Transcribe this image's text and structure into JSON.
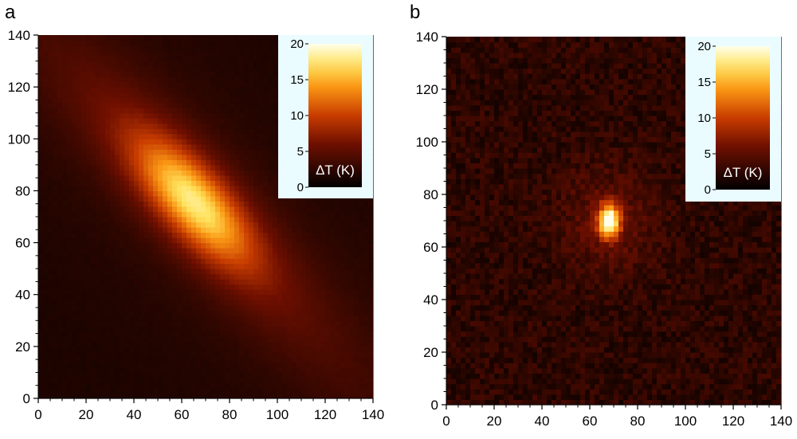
{
  "panels": [
    {
      "letter": "a",
      "colorbar": {
        "label": "ΔT (K)",
        "min": 0,
        "max": 20,
        "ticks": [
          0,
          5,
          10,
          15,
          20
        ]
      },
      "chart_data": {
        "type": "heatmap",
        "title": "",
        "xlabel": "",
        "ylabel": "",
        "xlim": [
          0,
          140
        ],
        "ylim": [
          0,
          140
        ],
        "xticks": [
          0,
          20,
          40,
          60,
          80,
          100,
          120,
          140
        ],
        "yticks": [
          0,
          20,
          40,
          60,
          80,
          100,
          120,
          140
        ],
        "z_unit": "K",
        "colormap": "black-red-orange-yellow-white",
        "description_values": {
          "peak_center": [
            65,
            76
          ],
          "peak_value": 14,
          "shape": "elongated",
          "elongation_axis": "diagonal, upper-left to lower-right",
          "background_value": 2.5
        }
      }
    },
    {
      "letter": "b",
      "colorbar": {
        "label": "ΔT (K)",
        "min": 0,
        "max": 20,
        "ticks": [
          0,
          5,
          10,
          15,
          20
        ]
      },
      "chart_data": {
        "type": "heatmap",
        "title": "",
        "xlabel": "",
        "ylabel": "",
        "xlim": [
          0,
          140
        ],
        "ylim": [
          0,
          140
        ],
        "xticks": [
          0,
          20,
          40,
          60,
          80,
          100,
          120,
          140
        ],
        "yticks": [
          0,
          20,
          40,
          60,
          80,
          100,
          120,
          140
        ],
        "z_unit": "K",
        "colormap": "black-red-orange-yellow-white",
        "description_values": {
          "peak_center": [
            68,
            70
          ],
          "peak_value": 19,
          "shape": "compact",
          "elongation_axis": "slightly vertical",
          "background_value": 2
        }
      }
    }
  ]
}
